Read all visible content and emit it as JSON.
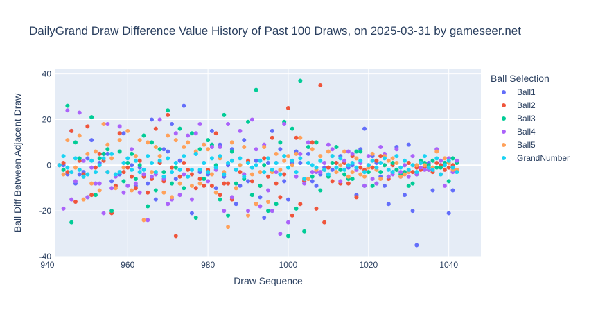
{
  "chart_data": {
    "type": "scatter",
    "title": "DailyGrand Draw Difference Value History of Past 100 Draws, on 2025-03-31 by gameseer.net",
    "xlabel": "Draw Sequence",
    "ylabel": "Ball Diff Between Adjacent Draw",
    "xlim": [
      942,
      1048
    ],
    "ylim": [
      -40,
      42
    ],
    "x_ticks": [
      940,
      960,
      980,
      1000,
      1020,
      1040
    ],
    "y_ticks": [
      -40,
      -20,
      0,
      20,
      40
    ],
    "x_first": 943,
    "legend_title": "Ball Selection",
    "legend_position": "right",
    "series": [
      {
        "name": "Ball1",
        "color": "#636efa",
        "values": [
          0,
          0,
          -4,
          15,
          -8,
          -4,
          -3,
          3,
          11,
          -8,
          1,
          5,
          5,
          -7,
          -9,
          -4,
          14,
          1,
          0,
          -9,
          -1,
          -4,
          -8,
          20,
          -15,
          1,
          7,
          6,
          18,
          -6,
          2,
          26,
          -5,
          -21,
          5,
          -3,
          1,
          -4,
          15,
          -10,
          9,
          -5,
          0,
          7,
          -17,
          -9,
          11,
          -7,
          -1,
          2,
          -14,
          -23,
          1,
          15,
          1,
          7,
          -7,
          -15,
          1,
          6,
          1,
          -7,
          5,
          -7,
          -9,
          -4,
          -1,
          -1,
          -2,
          1,
          4,
          1,
          -1,
          0,
          -13,
          7,
          16,
          0,
          4,
          1,
          -5,
          -9,
          -17,
          -3,
          8,
          -5,
          -13,
          9,
          -20,
          -35,
          1,
          0,
          1,
          -11,
          7,
          0,
          1,
          -21,
          -11,
          1
        ]
      },
      {
        "name": "Ball2",
        "color": "#ef553b",
        "values": [
          0,
          1,
          -3,
          15,
          -16,
          2,
          -4,
          17,
          -13,
          -1,
          5,
          2,
          -3,
          -21,
          -9,
          14,
          -3,
          -1,
          -5,
          -10,
          2,
          -5,
          -12,
          -6,
          16,
          1,
          -7,
          22,
          -1,
          -31,
          -5,
          1,
          -2,
          -4,
          -10,
          -6,
          -9,
          -2,
          -9,
          14,
          -13,
          -8,
          -8,
          -15,
          -10,
          -3,
          -4,
          2,
          -7,
          -17,
          -9,
          3,
          -5,
          12,
          -8,
          -14,
          -4,
          25,
          -22,
          12,
          -17,
          -7,
          -6,
          10,
          -19,
          35,
          -25,
          -1,
          -7,
          1,
          -8,
          1,
          -8,
          4,
          -14,
          -1,
          -2,
          -1,
          -1,
          2,
          4,
          0,
          -6,
          0,
          -2,
          -5,
          0,
          1,
          -3,
          -1,
          -2,
          -1,
          -2,
          -3,
          1,
          0,
          -2,
          -1,
          0,
          -2
        ]
      },
      {
        "name": "Ball3",
        "color": "#00cc96",
        "values": [
          0,
          -2,
          26,
          -25,
          10,
          3,
          -5,
          -14,
          21,
          -13,
          3,
          5,
          7,
          -20,
          -4,
          6,
          -7,
          1,
          5,
          -6,
          0,
          13,
          -18,
          10,
          -11,
          7,
          -3,
          24,
          -8,
          -1,
          16,
          -10,
          -5,
          14,
          -23,
          7,
          -6,
          11,
          9,
          0,
          -15,
          22,
          -22,
          6,
          -8,
          0,
          -6,
          19,
          -13,
          33,
          -9,
          0,
          -20,
          -20,
          -17,
          10,
          19,
          -31,
          16,
          -19,
          37,
          -29,
          8,
          -5,
          10,
          -11,
          -2,
          -5,
          1,
          8,
          -2,
          -4,
          -6,
          -6,
          6,
          6,
          -9,
          -3,
          -9,
          -8,
          -3,
          0,
          -5,
          1,
          -2,
          -4,
          -3,
          -9,
          -8,
          -4,
          2,
          1,
          0,
          2,
          -1,
          -1,
          1,
          -7,
          3,
          1
        ]
      },
      {
        "name": "Ball4",
        "color": "#ab63fa",
        "values": [
          0,
          -19,
          24,
          -15,
          -7,
          23,
          2,
          -14,
          -1,
          -8,
          -8,
          -21,
          18,
          -10,
          -5,
          17,
          -12,
          -9,
          7,
          -8,
          -12,
          -4,
          -24,
          -5,
          -4,
          20,
          -6,
          -17,
          -15,
          14,
          -13,
          -4,
          13,
          -15,
          14,
          18,
          9,
          -7,
          8,
          -2,
          8,
          -20,
          18,
          -14,
          -2,
          15,
          -4,
          -20,
          20,
          7,
          -18,
          9,
          -11,
          -20,
          -3,
          -30,
          18,
          -25,
          2,
          -5,
          5,
          -8,
          10,
          -3,
          -3,
          -3,
          1,
          9,
          7,
          -1,
          -7,
          2,
          6,
          5,
          -2,
          1,
          -9,
          4,
          -6,
          -8,
          8,
          5,
          -5,
          -4,
          7,
          -3,
          0,
          -5,
          4,
          -4,
          -1,
          -2,
          -2,
          -2,
          7,
          2,
          -9,
          3,
          -3,
          2
        ]
      },
      {
        "name": "Ball5",
        "color": "#ffa15a",
        "values": [
          0,
          -4,
          11,
          -3,
          -1,
          13,
          -15,
          5,
          -8,
          6,
          -11,
          18,
          9,
          3,
          -10,
          11,
          -1,
          15,
          -11,
          4,
          11,
          -24,
          10,
          -3,
          8,
          4,
          -12,
          13,
          -14,
          11,
          -8,
          8,
          10,
          -9,
          6,
          -8,
          9,
          7,
          -4,
          -12,
          3,
          -3,
          -27,
          10,
          -10,
          0,
          8,
          -22,
          -4,
          -17,
          -3,
          8,
          -16,
          -3,
          5,
          -2,
          2,
          4,
          0,
          5,
          12,
          -6,
          -6,
          7,
          -2,
          4,
          -2,
          6,
          4,
          -3,
          0,
          6,
          -5,
          -3,
          3,
          -4,
          -5,
          -1,
          5,
          -2,
          -6,
          4,
          2,
          3,
          1,
          -5,
          -4,
          -3,
          0,
          0,
          1,
          0,
          -1,
          -1,
          6,
          -4,
          3,
          1,
          -2,
          -2
        ]
      },
      {
        "name": "GrandNumber",
        "color": "#19d3f3",
        "values": [
          0,
          4,
          -1,
          -3,
          3,
          -2,
          -5,
          -4,
          2,
          -3,
          0,
          3,
          -3,
          5,
          -4,
          -3,
          1,
          3,
          -2,
          2,
          -3,
          -2,
          4,
          1,
          -3,
          2,
          -5,
          3,
          -3,
          1,
          -2,
          4,
          -5,
          -2,
          5,
          -2,
          1,
          -3,
          3,
          -1,
          4,
          -4,
          1,
          2,
          -2,
          3,
          -5,
          1,
          -1,
          0,
          2,
          -3,
          3,
          -2,
          1,
          -4,
          4,
          -1,
          2,
          -3,
          3,
          -6,
          1,
          0,
          -1,
          2,
          -2,
          -4,
          4,
          -1,
          3,
          -2,
          0,
          1,
          -1,
          2,
          -3,
          0,
          2,
          -1,
          1,
          3,
          -2,
          -3,
          4,
          -1,
          2,
          -2,
          0,
          -3,
          1,
          4,
          -1,
          -2,
          3,
          -4,
          0,
          2,
          -1,
          -3
        ]
      }
    ]
  }
}
